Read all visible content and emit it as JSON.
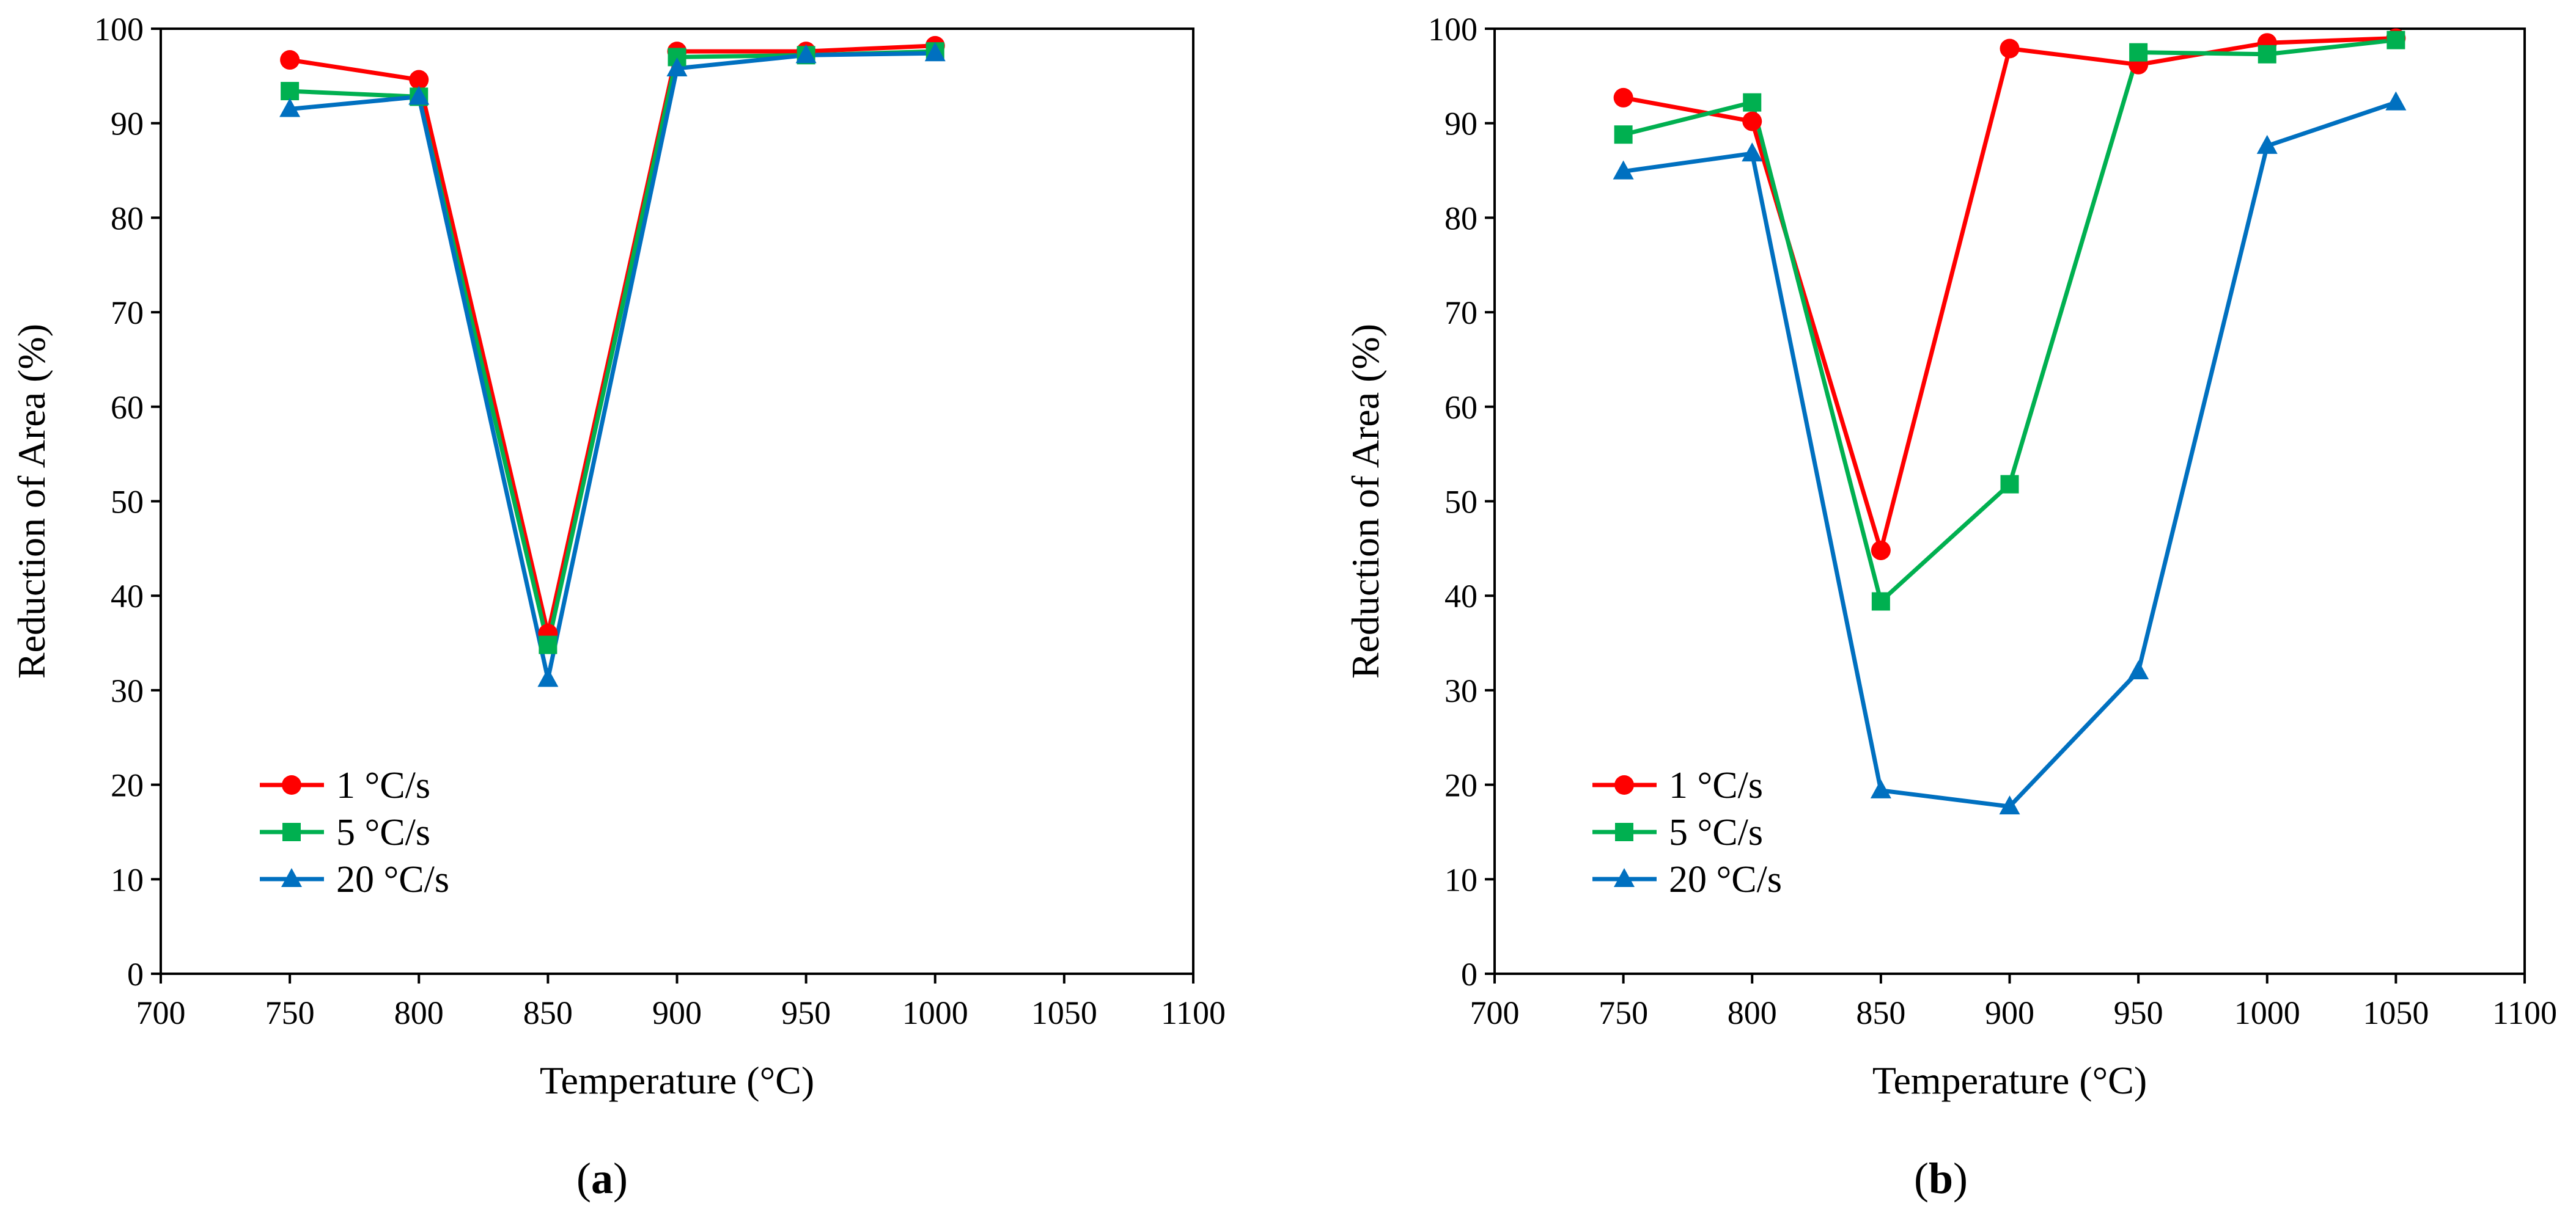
{
  "chart_data": [
    {
      "type": "line",
      "panel_label": "a",
      "xlabel": "Temperature (°C)",
      "ylabel": "Reduction of Area (%)",
      "xlim": [
        700,
        1100
      ],
      "ylim": [
        0,
        100
      ],
      "xticks": [
        700,
        750,
        800,
        850,
        900,
        950,
        1000,
        1050,
        1100
      ],
      "yticks": [
        0,
        10,
        20,
        30,
        40,
        50,
        60,
        70,
        80,
        90,
        100
      ],
      "legend_position": "bottom-left",
      "series": [
        {
          "name": "1 °C/s",
          "color": "#ff0000",
          "marker": "circle",
          "x": [
            750,
            800,
            850,
            900,
            950,
            1000
          ],
          "y": [
            96.7,
            94.6,
            36.0,
            97.6,
            97.6,
            98.2
          ]
        },
        {
          "name": "5 °C/s",
          "color": "#00b050",
          "marker": "square",
          "x": [
            750,
            800,
            850,
            900,
            950,
            1000
          ],
          "y": [
            93.4,
            92.8,
            34.8,
            97.0,
            97.2,
            97.6
          ]
        },
        {
          "name": "20 °C/s",
          "color": "#0070c0",
          "marker": "triangle",
          "x": [
            750,
            800,
            850,
            900,
            950,
            1000
          ],
          "y": [
            91.5,
            92.8,
            31.2,
            95.8,
            97.2,
            97.4
          ]
        }
      ]
    },
    {
      "type": "line",
      "panel_label": "b",
      "xlabel": "Temperature (°C)",
      "ylabel": "Reduction of Area (%)",
      "xlim": [
        700,
        1100
      ],
      "ylim": [
        0,
        100
      ],
      "xticks": [
        700,
        750,
        800,
        850,
        900,
        950,
        1000,
        1050,
        1100
      ],
      "yticks": [
        0,
        10,
        20,
        30,
        40,
        50,
        60,
        70,
        80,
        90,
        100
      ],
      "legend_position": "bottom-left",
      "series": [
        {
          "name": "1 °C/s",
          "color": "#ff0000",
          "marker": "circle",
          "x": [
            750,
            800,
            850,
            900,
            950,
            1000,
            1050
          ],
          "y": [
            92.7,
            90.2,
            44.8,
            97.9,
            96.2,
            98.5,
            99.0
          ]
        },
        {
          "name": "5 °C/s",
          "color": "#00b050",
          "marker": "square",
          "x": [
            750,
            800,
            850,
            900,
            950,
            1000,
            1050
          ],
          "y": [
            88.8,
            92.2,
            39.4,
            51.8,
            97.5,
            97.3,
            98.8
          ]
        },
        {
          "name": "20 °C/s",
          "color": "#0070c0",
          "marker": "triangle",
          "x": [
            750,
            800,
            850,
            900,
            950,
            1000,
            1050
          ],
          "y": [
            84.9,
            86.8,
            19.4,
            17.7,
            32.0,
            87.6,
            92.2
          ]
        }
      ]
    }
  ]
}
